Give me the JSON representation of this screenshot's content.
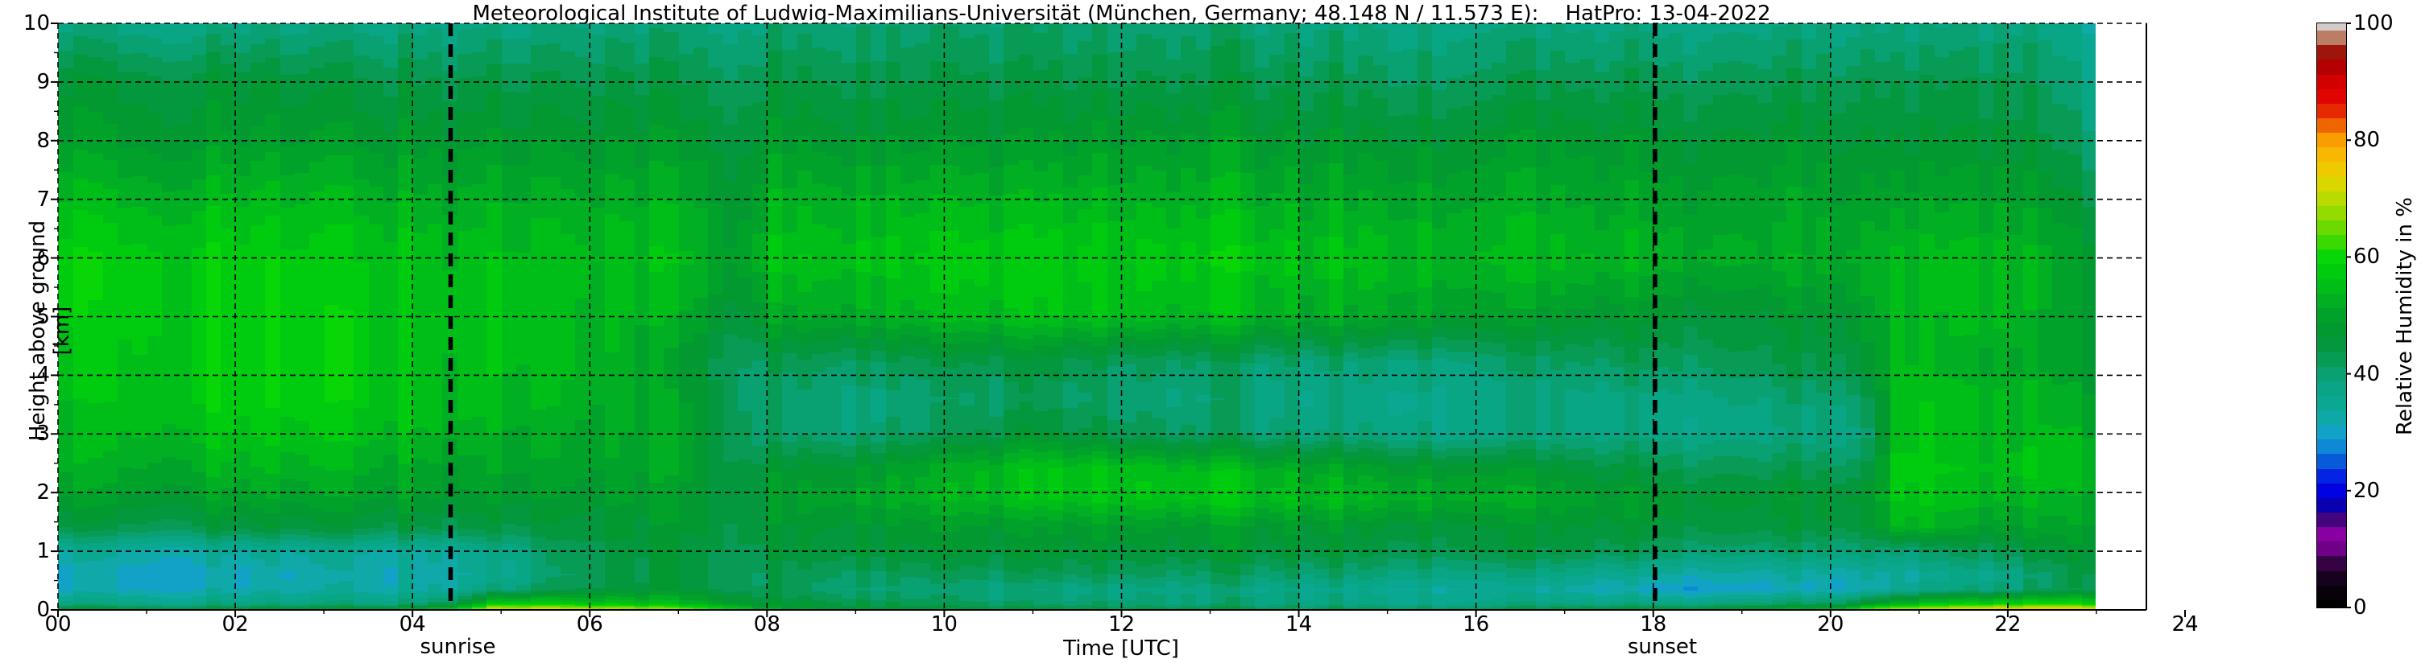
{
  "figure": {
    "title": "Meteorological Institute of Ludwig-Maximilians-Universität (München, Germany; 48.148 N / 11.573 E):    HatPro: 13-04-2022",
    "background": "#ffffff"
  },
  "axes": {
    "xlabel": "Time [UTC]",
    "ylabel": "Height above ground [km]",
    "x_range": [
      0,
      24
    ],
    "y_range": [
      0,
      10
    ],
    "x_tick_values": [
      0,
      2,
      4,
      6,
      8,
      10,
      12,
      14,
      16,
      18,
      20,
      22,
      24
    ],
    "x_tick_labels": [
      "00",
      "02",
      "04",
      "06",
      "08",
      "10",
      "12",
      "14",
      "16",
      "18",
      "20",
      "22",
      "24"
    ],
    "x_minor_tick_values": [
      1,
      3,
      5,
      7,
      9,
      11,
      13,
      15,
      17,
      19,
      21,
      23
    ],
    "y_tick_values": [
      0,
      1,
      2,
      3,
      4,
      5,
      6,
      7,
      8,
      9,
      10
    ],
    "y_tick_labels": [
      "0",
      "1",
      "2",
      "3",
      "4",
      "5",
      "6",
      "7",
      "8",
      "9",
      "10"
    ],
    "y_minor_tick_values": [
      0.5,
      1.5,
      2.5,
      3.5,
      4.5,
      5.5,
      6.5,
      7.5,
      8.5,
      9.5
    ],
    "grid": "dashed-black",
    "annotations": [
      {
        "label": "sunrise",
        "time_utc": 4.43
      },
      {
        "label": "sunset",
        "time_utc": 18.02
      }
    ]
  },
  "colorbar": {
    "label": "Relative Humidity in %",
    "tick_values": [
      0,
      20,
      40,
      60,
      80,
      100
    ],
    "tick_labels": [
      "0",
      "20",
      "40",
      "60",
      "80",
      "100"
    ],
    "anchors": [
      [
        0,
        "#000000"
      ],
      [
        4,
        "#0d0210"
      ],
      [
        7,
        "#2a0336"
      ],
      [
        10,
        "#6e0188"
      ],
      [
        13,
        "#8e00a6"
      ],
      [
        15,
        "#43047e"
      ],
      [
        17,
        "#0c01a8"
      ],
      [
        19,
        "#0000d2"
      ],
      [
        21,
        "#0005ee"
      ],
      [
        24,
        "#0746d8"
      ],
      [
        27,
        "#0c85d8"
      ],
      [
        30,
        "#12a2c8"
      ],
      [
        32,
        "#0fa9ac"
      ],
      [
        35,
        "#0aa891"
      ],
      [
        38,
        "#09a584"
      ],
      [
        40,
        "#09a172"
      ],
      [
        42,
        "#089c5a"
      ],
      [
        44,
        "#059845"
      ],
      [
        46,
        "#039736"
      ],
      [
        48,
        "#019b2e"
      ],
      [
        50,
        "#00a229"
      ],
      [
        52,
        "#00ad24"
      ],
      [
        54,
        "#00b81d"
      ],
      [
        56,
        "#00c414"
      ],
      [
        58,
        "#00cf0d"
      ],
      [
        60,
        "#09d607"
      ],
      [
        63,
        "#45da02"
      ],
      [
        66,
        "#7edb00"
      ],
      [
        69,
        "#abdc00"
      ],
      [
        72,
        "#d6da00"
      ],
      [
        75,
        "#eecb00"
      ],
      [
        78,
        "#fab300"
      ],
      [
        80,
        "#fa9d00"
      ],
      [
        82,
        "#f17400"
      ],
      [
        84,
        "#ea3f00"
      ],
      [
        86,
        "#e51400"
      ],
      [
        88,
        "#df0000"
      ],
      [
        90,
        "#d30000"
      ],
      [
        92,
        "#ba0000"
      ],
      [
        94,
        "#a00000"
      ],
      [
        95.5,
        "#9e2012"
      ],
      [
        97,
        "#b56e52"
      ],
      [
        98.5,
        "#c9a089"
      ],
      [
        100,
        "#d3cbc7"
      ]
    ]
  },
  "chart_data": {
    "type": "heatmap",
    "title": "Meteorological Institute of Ludwig-Maximilians-Universität (München, Germany; 48.148 N / 11.573 E):  HatPro: 13-04-2022",
    "xlabel": "Time [UTC]",
    "ylabel": "Height above ground [km]",
    "value_label": "Relative Humidity in %",
    "x_range_h": [
      0,
      24
    ],
    "data_end_h": 23,
    "sample_minutes": 10,
    "height_levels_km": [
      0,
      0.1,
      0.35,
      0.6,
      1.0,
      1.4,
      1.9,
      2.4,
      3.0,
      3.6,
      4.2,
      5.0,
      6.0,
      7.0,
      8.0,
      9.0,
      10
    ],
    "time_points_h": [
      0,
      1,
      2,
      3,
      4,
      4.5,
      5,
      6,
      7,
      7.7,
      8,
      9,
      10,
      11,
      12,
      13,
      14,
      15,
      16,
      17,
      18,
      19,
      20,
      20.4,
      20.8,
      21.5,
      22,
      22.6,
      23
    ],
    "rh_percent_profiles": [
      [
        48,
        38,
        31,
        30,
        34,
        44,
        49,
        52,
        53,
        54,
        55,
        57,
        58,
        54,
        49,
        46,
        38
      ],
      [
        48,
        38,
        32,
        31,
        34,
        44,
        49,
        52,
        55,
        57,
        57,
        58,
        58,
        54,
        49,
        46,
        38
      ],
      [
        48,
        38,
        32,
        31,
        34,
        45,
        50,
        53,
        56,
        58,
        58,
        58,
        58,
        54,
        49,
        46,
        38
      ],
      [
        48,
        39,
        33,
        32,
        35,
        45,
        50,
        53,
        56,
        58,
        58,
        58,
        57,
        54,
        49,
        45,
        38
      ],
      [
        52,
        40,
        34,
        33,
        35,
        45,
        50,
        52,
        55,
        57,
        57,
        57,
        57,
        53,
        49,
        45,
        39
      ],
      [
        62,
        46,
        36,
        34,
        36,
        45,
        49,
        51,
        54,
        56,
        56,
        57,
        56,
        53,
        49,
        45,
        39
      ],
      [
        76,
        60,
        40,
        37,
        38,
        45,
        49,
        51,
        53,
        55,
        56,
        56,
        56,
        53,
        49,
        45,
        39
      ],
      [
        74,
        58,
        46,
        44,
        45,
        47,
        49,
        51,
        52,
        54,
        55,
        55,
        56,
        53,
        49,
        45,
        40
      ],
      [
        68,
        54,
        46,
        45,
        46,
        47,
        49,
        50,
        50,
        50,
        48,
        52,
        55,
        52,
        48,
        44,
        39
      ],
      [
        58,
        48,
        42,
        41,
        42,
        43,
        44,
        43,
        41,
        40,
        40,
        44,
        48,
        46,
        44,
        41,
        37
      ],
      [
        50,
        46,
        42,
        42,
        45,
        46,
        48,
        46,
        40,
        40,
        42,
        50,
        55,
        52,
        48,
        44,
        39
      ],
      [
        48,
        44,
        40,
        42,
        46,
        47,
        51,
        48,
        40,
        39,
        42,
        52,
        56,
        53,
        48,
        44,
        40
      ],
      [
        46,
        42,
        39,
        42,
        46,
        48,
        53,
        52,
        42,
        40,
        43,
        54,
        57,
        53,
        48,
        44,
        40
      ],
      [
        46,
        40,
        38,
        42,
        46,
        48,
        55,
        55,
        46,
        42,
        44,
        55,
        57,
        53,
        48,
        44,
        40
      ],
      [
        45,
        40,
        38,
        42,
        46,
        49,
        56,
        56,
        43,
        40,
        42,
        55,
        57,
        53,
        49,
        44,
        40
      ],
      [
        45,
        39,
        38,
        41,
        46,
        48,
        56,
        54,
        41,
        39,
        41,
        54,
        57,
        53,
        49,
        44,
        40
      ],
      [
        44,
        39,
        37,
        41,
        46,
        48,
        55,
        52,
        40,
        38,
        40,
        52,
        56,
        52,
        48,
        44,
        39
      ],
      [
        44,
        38,
        36,
        40,
        45,
        47,
        54,
        50,
        39,
        38,
        40,
        52,
        56,
        52,
        48,
        43,
        39
      ],
      [
        44,
        38,
        35,
        39,
        45,
        47,
        53,
        49,
        38,
        38,
        40,
        50,
        55,
        52,
        48,
        43,
        39
      ],
      [
        46,
        38,
        33,
        37,
        44,
        46,
        50,
        46,
        38,
        38,
        41,
        48,
        54,
        51,
        48,
        43,
        38
      ],
      [
        48,
        38,
        30,
        34,
        42,
        46,
        48,
        44,
        38,
        38,
        42,
        47,
        53,
        50,
        47,
        43,
        38
      ],
      [
        50,
        40,
        30,
        33,
        40,
        45,
        47,
        43,
        38,
        39,
        43,
        46,
        52,
        50,
        47,
        43,
        38
      ],
      [
        55,
        42,
        31,
        33,
        40,
        45,
        47,
        43,
        38,
        40,
        44,
        47,
        52,
        50,
        47,
        43,
        38
      ],
      [
        66,
        48,
        33,
        34,
        41,
        46,
        48,
        44,
        40,
        43,
        47,
        50,
        53,
        50,
        47,
        44,
        39
      ],
      [
        72,
        55,
        36,
        34,
        40,
        55,
        58,
        59,
        58,
        57,
        56,
        55,
        55,
        51,
        47,
        44,
        39
      ],
      [
        75,
        58,
        38,
        36,
        42,
        50,
        54,
        55,
        54,
        53,
        52,
        53,
        54,
        50,
        46,
        43,
        38
      ],
      [
        76,
        58,
        38,
        36,
        42,
        48,
        52,
        54,
        53,
        52,
        51,
        52,
        53,
        49,
        45,
        42,
        38
      ],
      [
        78,
        60,
        42,
        42,
        46,
        50,
        53,
        55,
        54,
        52,
        50,
        50,
        51,
        47,
        43,
        40,
        37
      ],
      [
        78,
        62,
        46,
        48,
        50,
        52,
        54,
        56,
        54,
        52,
        50,
        50,
        50,
        46,
        42,
        39,
        36
      ]
    ]
  }
}
